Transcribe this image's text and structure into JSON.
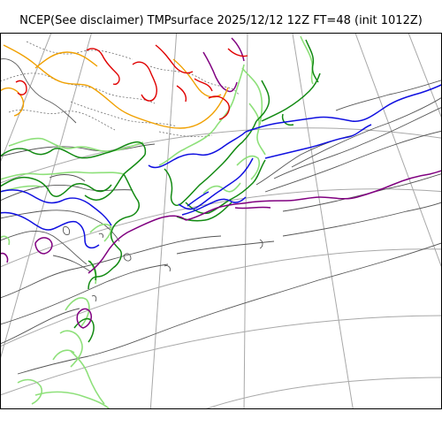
{
  "title": "NCEP(See disclaimer) TMPsurface 2025/12/12 12Z FT=48 (init 1012Z)",
  "colors": {
    "background": "#ffffff",
    "graticule": "#a8a8a8",
    "isotherm_thin": "#555555",
    "coast_light_green": "#8ee07a",
    "coast_dark_green": "#128a12",
    "contour_blue": "#1010e0",
    "contour_purple": "#800080",
    "contour_orange": "#f0a000",
    "contour_red": "#e00000",
    "contour_dotted": "#707070"
  }
}
